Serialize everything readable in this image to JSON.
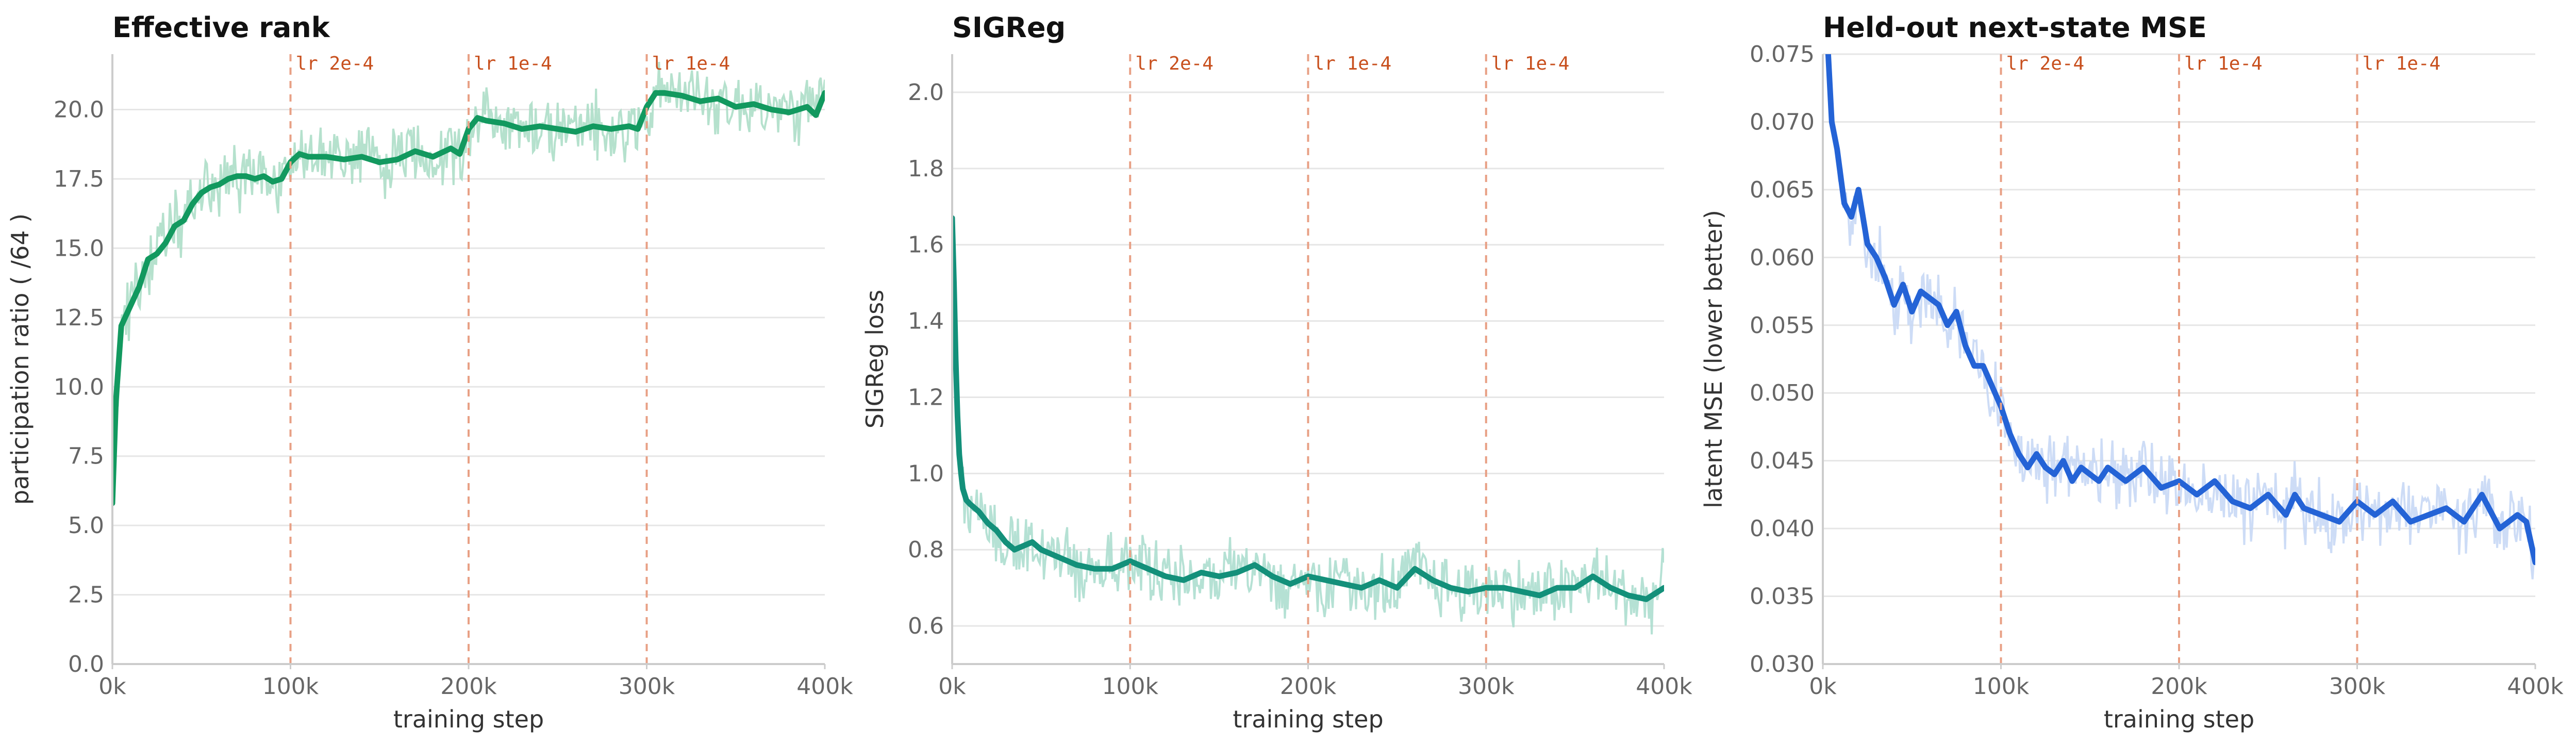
{
  "chart_data": [
    {
      "type": "line",
      "title": "Effective rank",
      "xlabel": "training step",
      "ylabel": "participation ratio ( /64 )",
      "xlim": [
        0,
        400000
      ],
      "ylim": [
        0,
        22
      ],
      "xticks": [
        0,
        100000,
        200000,
        300000,
        400000
      ],
      "xtick_labels": [
        "0k",
        "100k",
        "200k",
        "300k",
        "400k"
      ],
      "yticks": [
        0,
        2.5,
        5,
        7.5,
        10,
        12.5,
        15,
        17.5,
        20
      ],
      "ytick_labels": [
        "0.0",
        "2.5",
        "5.0",
        "7.5",
        "10.0",
        "12.5",
        "15.0",
        "17.5",
        "20.0"
      ],
      "grid": "horizontal",
      "color": "#12995f",
      "raw_color": "#a8dcc4",
      "annotations": [
        {
          "x": 100000,
          "label": "lr 2e-4"
        },
        {
          "x": 200000,
          "label": "lr 1e-4"
        },
        {
          "x": 300000,
          "label": "lr 1e-4"
        }
      ],
      "series": [
        {
          "x": [
            0,
            2000,
            5000,
            10000,
            15000,
            20000,
            25000,
            30000,
            35000,
            40000,
            45000,
            50000,
            55000,
            60000,
            65000,
            70000,
            75000,
            80000,
            85000,
            90000,
            95000,
            100000,
            105000,
            110000,
            120000,
            130000,
            140000,
            150000,
            160000,
            170000,
            180000,
            190000,
            195000,
            200000,
            205000,
            210000,
            220000,
            230000,
            240000,
            250000,
            260000,
            270000,
            280000,
            290000,
            295000,
            300000,
            305000,
            310000,
            320000,
            330000,
            340000,
            350000,
            360000,
            370000,
            380000,
            390000,
            395000,
            400000
          ],
          "y": [
            5.8,
            9.5,
            12.2,
            12.9,
            13.6,
            14.6,
            14.8,
            15.2,
            15.8,
            16.0,
            16.6,
            17.0,
            17.2,
            17.3,
            17.5,
            17.6,
            17.6,
            17.5,
            17.6,
            17.4,
            17.5,
            18.1,
            18.4,
            18.3,
            18.3,
            18.2,
            18.3,
            18.1,
            18.2,
            18.5,
            18.3,
            18.6,
            18.4,
            19.3,
            19.7,
            19.6,
            19.5,
            19.3,
            19.4,
            19.3,
            19.2,
            19.4,
            19.3,
            19.4,
            19.3,
            20.1,
            20.6,
            20.6,
            20.5,
            20.3,
            20.4,
            20.1,
            20.2,
            20.0,
            19.9,
            20.1,
            19.8,
            20.6
          ]
        }
      ]
    },
    {
      "type": "line",
      "title": "SIGReg",
      "xlabel": "training step",
      "ylabel": "SIGReg loss",
      "xlim": [
        0,
        400000
      ],
      "ylim": [
        0.5,
        2.1
      ],
      "xticks": [
        0,
        100000,
        200000,
        300000,
        400000
      ],
      "xtick_labels": [
        "0k",
        "100k",
        "200k",
        "300k",
        "400k"
      ],
      "yticks": [
        0.6,
        0.8,
        1.0,
        1.2,
        1.4,
        1.6,
        1.8,
        2.0
      ],
      "ytick_labels": [
        "0.6",
        "0.8",
        "1.0",
        "1.2",
        "1.4",
        "1.6",
        "1.8",
        "2.0"
      ],
      "grid": "horizontal",
      "color": "#13907a",
      "raw_color": "#a8dccc",
      "annotations": [
        {
          "x": 100000,
          "label": "lr 2e-4"
        },
        {
          "x": 200000,
          "label": "lr 1e-4"
        },
        {
          "x": 300000,
          "label": "lr 1e-4"
        }
      ],
      "series": [
        {
          "x": [
            0,
            1000,
            2000,
            3000,
            4000,
            5000,
            6000,
            8000,
            10000,
            15000,
            20000,
            25000,
            30000,
            35000,
            40000,
            45000,
            50000,
            60000,
            70000,
            80000,
            90000,
            100000,
            110000,
            120000,
            130000,
            140000,
            150000,
            160000,
            170000,
            180000,
            190000,
            200000,
            210000,
            220000,
            230000,
            240000,
            250000,
            260000,
            270000,
            280000,
            290000,
            300000,
            310000,
            320000,
            330000,
            340000,
            350000,
            360000,
            370000,
            380000,
            390000,
            400000
          ],
          "y": [
            1.67,
            1.5,
            1.3,
            1.15,
            1.05,
            1.0,
            0.96,
            0.93,
            0.92,
            0.9,
            0.87,
            0.85,
            0.82,
            0.8,
            0.81,
            0.82,
            0.8,
            0.78,
            0.76,
            0.75,
            0.75,
            0.77,
            0.75,
            0.73,
            0.72,
            0.74,
            0.73,
            0.74,
            0.76,
            0.73,
            0.71,
            0.73,
            0.72,
            0.71,
            0.7,
            0.72,
            0.7,
            0.75,
            0.72,
            0.7,
            0.69,
            0.7,
            0.7,
            0.69,
            0.68,
            0.7,
            0.7,
            0.73,
            0.7,
            0.68,
            0.67,
            0.7
          ]
        }
      ]
    },
    {
      "type": "line",
      "title": "Held-out next-state MSE",
      "xlabel": "training step",
      "ylabel": "latent MSE (lower better)",
      "xlim": [
        0,
        400000
      ],
      "ylim": [
        0.03,
        0.075
      ],
      "xticks": [
        0,
        100000,
        200000,
        300000,
        400000
      ],
      "xtick_labels": [
        "0k",
        "100k",
        "200k",
        "300k",
        "400k"
      ],
      "yticks": [
        0.03,
        0.035,
        0.04,
        0.045,
        0.05,
        0.055,
        0.06,
        0.065,
        0.07,
        0.075
      ],
      "ytick_labels": [
        "0.030",
        "0.035",
        "0.040",
        "0.045",
        "0.050",
        "0.055",
        "0.060",
        "0.065",
        "0.070",
        "0.075"
      ],
      "grid": "horizontal",
      "color": "#2463d6",
      "raw_color": "#c4d6f4",
      "annotations": [
        {
          "x": 100000,
          "label": "lr 2e-4"
        },
        {
          "x": 200000,
          "label": "lr 1e-4"
        },
        {
          "x": 300000,
          "label": "lr 1e-4"
        }
      ],
      "series": [
        {
          "x": [
            3000,
            5000,
            8000,
            12000,
            16000,
            20000,
            25000,
            30000,
            35000,
            40000,
            45000,
            50000,
            55000,
            60000,
            65000,
            70000,
            75000,
            80000,
            85000,
            90000,
            95000,
            100000,
            105000,
            110000,
            115000,
            120000,
            125000,
            130000,
            135000,
            140000,
            145000,
            150000,
            155000,
            160000,
            170000,
            180000,
            190000,
            200000,
            210000,
            220000,
            230000,
            240000,
            250000,
            260000,
            265000,
            270000,
            280000,
            290000,
            300000,
            310000,
            320000,
            330000,
            340000,
            350000,
            360000,
            365000,
            370000,
            380000,
            385000,
            390000,
            395000,
            400000
          ],
          "y": [
            0.075,
            0.07,
            0.068,
            0.064,
            0.063,
            0.065,
            0.061,
            0.06,
            0.0585,
            0.0565,
            0.058,
            0.056,
            0.0575,
            0.057,
            0.0565,
            0.055,
            0.056,
            0.0535,
            0.052,
            0.052,
            0.0505,
            0.049,
            0.047,
            0.0455,
            0.0445,
            0.0455,
            0.0445,
            0.044,
            0.045,
            0.0435,
            0.0445,
            0.044,
            0.0435,
            0.0445,
            0.0435,
            0.0445,
            0.043,
            0.0435,
            0.0425,
            0.0435,
            0.042,
            0.0415,
            0.0425,
            0.041,
            0.0425,
            0.0415,
            0.041,
            0.0405,
            0.042,
            0.041,
            0.042,
            0.0405,
            0.041,
            0.0415,
            0.0405,
            0.0415,
            0.0425,
            0.04,
            0.0405,
            0.041,
            0.0405,
            0.0375
          ]
        }
      ]
    }
  ]
}
